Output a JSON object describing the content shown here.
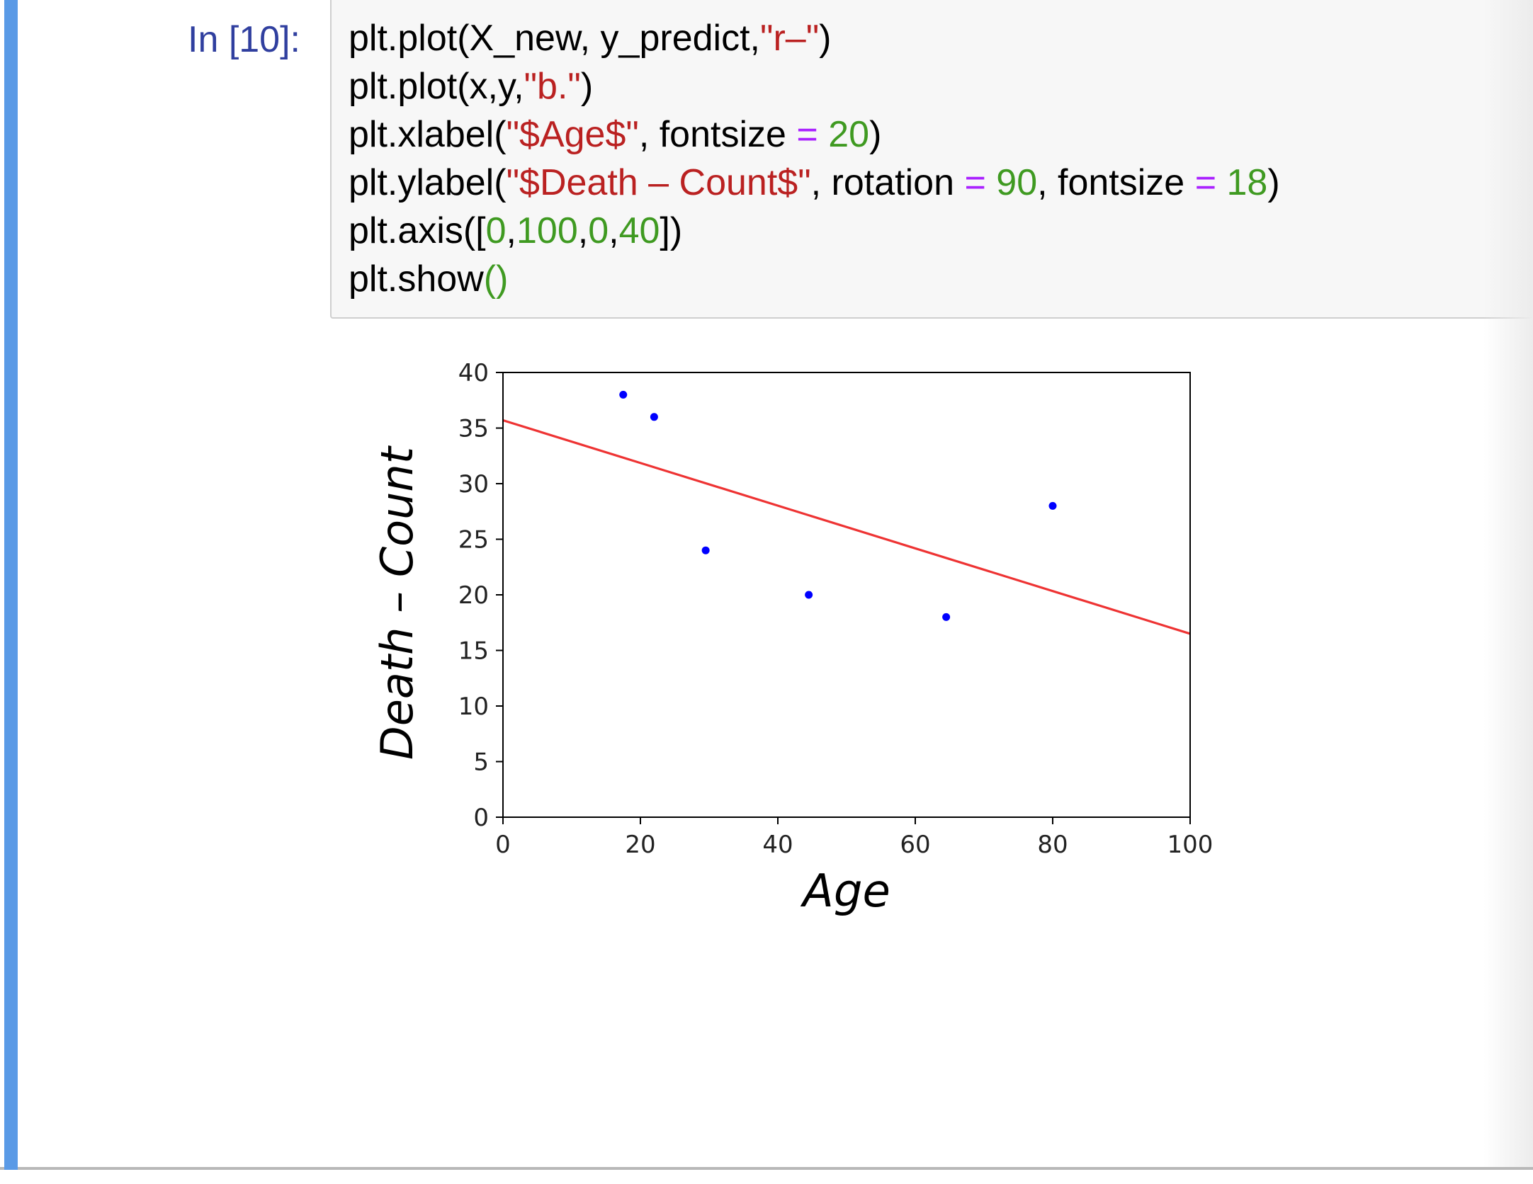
{
  "cell": {
    "prompt": "In [10]:",
    "code_lines": [
      [
        {
          "t": "plt.plot(X_new, y_predict,",
          "c": ""
        },
        {
          "t": "\"r–\"",
          "c": "s"
        },
        {
          "t": ")",
          "c": ""
        }
      ],
      [
        {
          "t": "plt.plot(x,y,",
          "c": ""
        },
        {
          "t": "\"b.\"",
          "c": "s"
        },
        {
          "t": ")",
          "c": ""
        }
      ],
      [
        {
          "t": "plt.xlabel(",
          "c": ""
        },
        {
          "t": "\"$Age$\"",
          "c": "s"
        },
        {
          "t": ", fontsize ",
          "c": ""
        },
        {
          "t": "=",
          "c": "o"
        },
        {
          "t": " ",
          "c": ""
        },
        {
          "t": "20",
          "c": "n"
        },
        {
          "t": ")",
          "c": ""
        }
      ],
      [
        {
          "t": "plt.ylabel(",
          "c": ""
        },
        {
          "t": "\"$Death – Count$\"",
          "c": "s"
        },
        {
          "t": ", rotation ",
          "c": ""
        },
        {
          "t": "=",
          "c": "o"
        },
        {
          "t": " ",
          "c": ""
        },
        {
          "t": "90",
          "c": "n"
        },
        {
          "t": ", fontsize ",
          "c": ""
        },
        {
          "t": "=",
          "c": "o"
        },
        {
          "t": " ",
          "c": ""
        },
        {
          "t": "18",
          "c": "n"
        },
        {
          "t": ")",
          "c": ""
        }
      ],
      [
        {
          "t": "plt.axis([",
          "c": ""
        },
        {
          "t": "0",
          "c": "n"
        },
        {
          "t": ",",
          "c": ""
        },
        {
          "t": "100",
          "c": "n"
        },
        {
          "t": ",",
          "c": ""
        },
        {
          "t": "0",
          "c": "n"
        },
        {
          "t": ",",
          "c": ""
        },
        {
          "t": "40",
          "c": "n"
        },
        {
          "t": "])",
          "c": ""
        }
      ],
      [
        {
          "t": "plt.show",
          "c": ""
        },
        {
          "t": "()",
          "c": "p"
        }
      ]
    ]
  },
  "chart_data": {
    "type": "scatter",
    "xlabel": "Age",
    "ylabel": "Death – Count",
    "xlim": [
      0,
      100
    ],
    "ylim": [
      0,
      40
    ],
    "xticks": [
      "0",
      "20",
      "40",
      "60",
      "80",
      "100"
    ],
    "yticks": [
      "0",
      "5",
      "10",
      "15",
      "20",
      "25",
      "30",
      "35",
      "40"
    ],
    "grid": false,
    "series": [
      {
        "kind": "points",
        "color": "#0000ff",
        "x": [
          17.5,
          22,
          29.5,
          44.5,
          64.5,
          80
        ],
        "y": [
          38,
          36,
          24,
          20,
          18,
          28
        ]
      },
      {
        "kind": "line",
        "color": "#ee3333",
        "x": [
          0,
          100
        ],
        "y": [
          35.7,
          16.5
        ]
      }
    ]
  }
}
